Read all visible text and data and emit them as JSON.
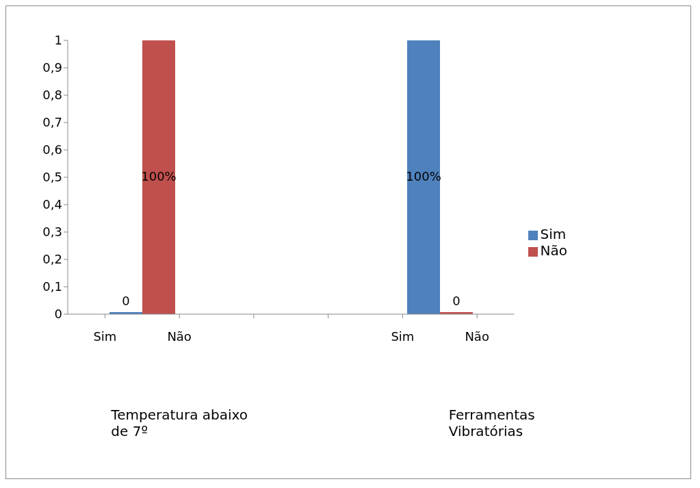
{
  "chart_data": {
    "type": "bar",
    "categories": [
      "Sim",
      "Não",
      null,
      null,
      "Sim",
      "Não"
    ],
    "series": [
      {
        "name": "Sim",
        "color": "#4f81bd",
        "values": [
          0,
          null,
          null,
          null,
          1,
          null
        ],
        "value_labels": [
          "0",
          null,
          null,
          null,
          "100%",
          null
        ]
      },
      {
        "name": "Não",
        "color": "#c0504d",
        "values": [
          null,
          1,
          null,
          null,
          null,
          0
        ],
        "value_labels": [
          null,
          "100%",
          null,
          null,
          null,
          "0"
        ]
      }
    ],
    "ylim": [
      0,
      1
    ],
    "yticks": [
      0,
      {
        "value": 0.1,
        "label": "0,1"
      },
      {
        "value": 0.2,
        "label": "0,2"
      },
      {
        "value": 0.3,
        "label": "0,3"
      },
      {
        "value": 0.4,
        "label": "0,4"
      },
      {
        "value": 0.5,
        "label": "0,5"
      },
      {
        "value": 0.6,
        "label": "0,6"
      },
      {
        "value": 0.7,
        "label": "0,7"
      },
      {
        "value": 0.8,
        "label": "0,8"
      },
      {
        "value": 0.9,
        "label": "0,9"
      },
      1
    ],
    "annotations": [
      "Temperatura abaixo de 7º",
      "Ferramentas Vibratórias"
    ],
    "grid": false,
    "legend": "right"
  }
}
